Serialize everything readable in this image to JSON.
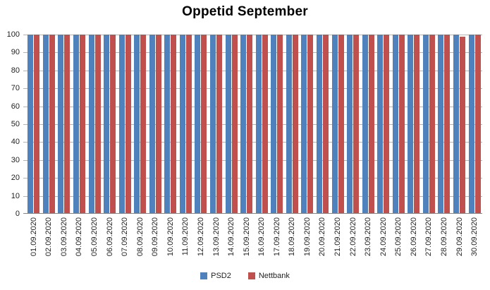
{
  "chart_data": {
    "type": "bar",
    "title": "Oppetid September",
    "categories": [
      "01.09.2020",
      "02.09.2020",
      "03.09.2020",
      "04.09.2020",
      "05.09.2020",
      "06.09.2020",
      "07.09.2020",
      "08.09.2020",
      "09.09.2020",
      "10.09.2020",
      "11.09.2020",
      "12.09.2020",
      "13.09.2020",
      "14.09.2020",
      "15.09.2020",
      "16.09.2020",
      "17.09.2020",
      "18.09.2020",
      "19.09.2020",
      "20.09.2020",
      "21.09.2020",
      "22.09.2020",
      "23.09.2020",
      "24.09.2020",
      "25.09.2020",
      "26.09.2020",
      "27.09.2020",
      "28.09.2020",
      "29.09.2020",
      "30.09.2020"
    ],
    "series": [
      {
        "name": "PSD2",
        "color": "#4F81BD",
        "values": [
          100,
          100,
          100,
          100,
          100,
          100,
          100,
          100,
          100,
          100,
          100,
          100,
          100,
          100,
          100,
          100,
          100,
          100,
          100,
          100,
          100,
          100,
          100,
          100,
          100,
          100,
          100,
          100,
          100,
          100
        ]
      },
      {
        "name": "Nettbank",
        "color": "#C0504D",
        "values": [
          100,
          100,
          100,
          100,
          100,
          100,
          100,
          100,
          100,
          100,
          100,
          100,
          100,
          100,
          100,
          100,
          100,
          100,
          100,
          100,
          100,
          100,
          100,
          100,
          100,
          100,
          100,
          100,
          99,
          100
        ]
      }
    ],
    "xlabel": "",
    "ylabel": "",
    "ylim": [
      0,
      100
    ],
    "yticks": [
      0,
      10,
      20,
      30,
      40,
      50,
      60,
      70,
      80,
      90,
      100
    ],
    "grid": "horizontal",
    "legend_position": "bottom",
    "gridline_color": "#b3b3b3",
    "axis_line_color": "#868686",
    "text_color": "#1f1f1f",
    "background_color": "#ffffff"
  }
}
